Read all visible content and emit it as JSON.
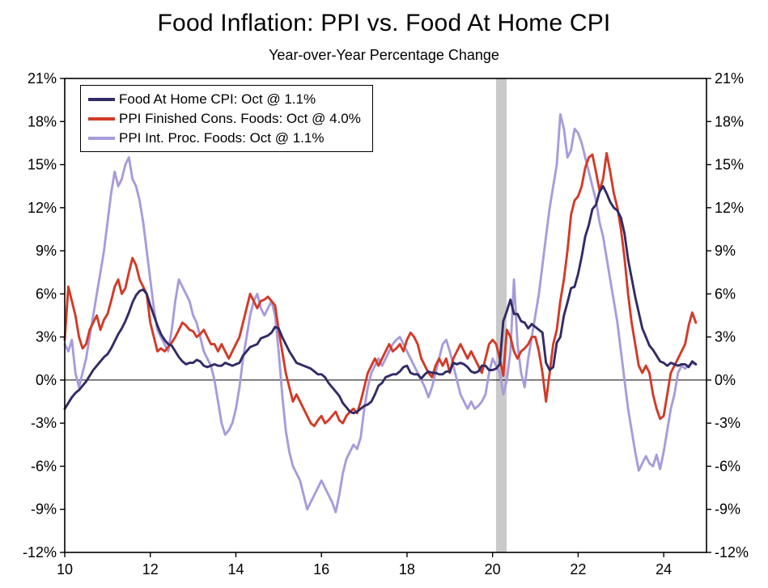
{
  "chart_data": {
    "type": "line",
    "title": "Food Inflation: PPI vs. Food At Home CPI",
    "subtitle": "Year-over-Year Percentage Change",
    "xlim": [
      10,
      25
    ],
    "ylim": [
      -12,
      21
    ],
    "xticks": [
      10,
      12,
      14,
      16,
      18,
      20,
      22,
      24
    ],
    "yticks": [
      21,
      18,
      15,
      12,
      9,
      6,
      3,
      0,
      -3,
      -6,
      -9,
      -12
    ],
    "ytick_suffix": "%",
    "grid": false,
    "zero_line": true,
    "legend_position": "top-left",
    "recession_band": {
      "x_from": 20.08,
      "x_to": 20.33,
      "color": "#c9c9c9"
    },
    "x_numeric_start": 10.0,
    "x_step": 0.0833333,
    "series": [
      {
        "name": "Food At Home CPI",
        "label": "Food At Home CPI: Oct @ 1.1%",
        "color": "#312b66",
        "values": [
          -2.0,
          -1.6,
          -1.2,
          -0.9,
          -0.7,
          -0.4,
          -0.1,
          0.3,
          0.7,
          1.0,
          1.3,
          1.6,
          1.8,
          2.2,
          2.7,
          3.2,
          3.6,
          4.1,
          4.7,
          5.4,
          5.9,
          6.2,
          6.3,
          6.0,
          5.2,
          4.5,
          3.8,
          3.2,
          2.8,
          2.5,
          2.4,
          2.0,
          1.6,
          1.3,
          1.1,
          1.2,
          1.2,
          1.4,
          1.3,
          1.0,
          0.9,
          1.0,
          1.1,
          1.0,
          1.0,
          1.2,
          1.1,
          1.0,
          1.1,
          1.2,
          1.7,
          2.0,
          2.3,
          2.4,
          2.5,
          2.9,
          3.0,
          3.1,
          3.3,
          3.7,
          3.6,
          3.0,
          2.5,
          2.0,
          1.6,
          1.2,
          1.1,
          1.0,
          0.9,
          0.8,
          0.6,
          0.4,
          0.4,
          0.2,
          -0.2,
          -0.5,
          -0.8,
          -1.1,
          -1.6,
          -1.9,
          -2.2,
          -2.3,
          -2.2,
          -2.0,
          -1.8,
          -1.7,
          -1.5,
          -1.0,
          -0.4,
          -0.2,
          0.2,
          0.3,
          0.4,
          0.4,
          0.6,
          0.9,
          1.0,
          0.5,
          0.4,
          0.4,
          0.1,
          0.4,
          0.6,
          0.5,
          0.5,
          0.4,
          0.4,
          0.6,
          0.6,
          1.2,
          1.1,
          1.2,
          1.1,
          0.9,
          0.6,
          0.5,
          0.6,
          1.0,
          1.0,
          0.7,
          0.7,
          0.8,
          1.1,
          4.1,
          4.8,
          5.6,
          4.6,
          4.6,
          4.1,
          4.0,
          3.6,
          3.9,
          3.7,
          3.5,
          3.3,
          1.2,
          0.7,
          0.9,
          2.6,
          3.0,
          4.5,
          5.4,
          6.4,
          6.5,
          7.4,
          8.6,
          10.0,
          10.8,
          11.9,
          12.2,
          13.1,
          13.5,
          13.0,
          12.4,
          12.0,
          11.8,
          11.3,
          10.2,
          8.4,
          7.1,
          5.8,
          4.7,
          3.6,
          3.0,
          2.4,
          2.1,
          1.7,
          1.3,
          1.2,
          1.0,
          1.2,
          1.1,
          1.0,
          1.1,
          1.1,
          0.9,
          1.3,
          1.1
        ]
      },
      {
        "name": "PPI Finished Cons. Foods",
        "label": "PPI Finished Cons. Foods: Oct @ 4.0%",
        "color": "#d23a27",
        "values": [
          2.8,
          6.5,
          5.5,
          4.5,
          3.0,
          2.2,
          2.5,
          3.5,
          4.0,
          4.5,
          3.5,
          4.2,
          4.6,
          5.5,
          6.5,
          7.0,
          6.0,
          6.4,
          7.5,
          8.5,
          8.0,
          7.0,
          6.5,
          6.0,
          4.0,
          3.0,
          2.0,
          2.2,
          2.0,
          2.3,
          2.6,
          3.0,
          3.5,
          4.0,
          3.8,
          3.5,
          3.4,
          3.0,
          3.2,
          3.5,
          3.0,
          2.5,
          2.5,
          2.0,
          2.5,
          2.0,
          1.5,
          2.0,
          2.5,
          3.0,
          4.0,
          5.0,
          6.0,
          5.5,
          5.0,
          5.5,
          5.6,
          5.8,
          5.5,
          5.2,
          3.5,
          2.0,
          0.5,
          -0.5,
          -1.5,
          -1.0,
          -1.5,
          -2.0,
          -2.5,
          -3.0,
          -3.2,
          -2.8,
          -2.5,
          -3.0,
          -2.8,
          -2.5,
          -2.2,
          -2.8,
          -3.0,
          -2.5,
          -2.2,
          -2.0,
          -2.3,
          -1.5,
          -0.5,
          0.5,
          1.0,
          1.5,
          1.0,
          1.5,
          2.0,
          2.5,
          2.0,
          2.2,
          2.5,
          2.0,
          2.8,
          3.3,
          3.0,
          2.5,
          1.5,
          1.0,
          0.5,
          0.2,
          1.0,
          1.5,
          1.0,
          1.5,
          0.5,
          1.5,
          2.0,
          2.5,
          2.0,
          1.5,
          2.0,
          1.5,
          1.0,
          0.5,
          1.5,
          2.5,
          2.8,
          2.5,
          1.5,
          0.3,
          3.5,
          3.0,
          2.0,
          1.5,
          2.0,
          2.2,
          2.5,
          3.0,
          3.0,
          2.0,
          0.5,
          -1.5,
          0.5,
          2.5,
          3.5,
          5.5,
          7.0,
          9.0,
          11.5,
          12.5,
          12.8,
          13.5,
          14.8,
          15.5,
          15.7,
          14.5,
          13.2,
          14.0,
          15.8,
          14.5,
          13.0,
          12.0,
          10.5,
          8.5,
          6.0,
          4.0,
          2.5,
          1.0,
          0.5,
          1.0,
          0.5,
          -1.0,
          -2.0,
          -2.7,
          -2.5,
          -1.0,
          0.5,
          1.0,
          1.5,
          2.0,
          2.5,
          3.8,
          4.7,
          4.0
        ]
      },
      {
        "name": "PPI Int. Proc. Foods",
        "label": "PPI Int. Proc. Foods: Oct @ 1.1%",
        "color": "#a89bdb",
        "values": [
          2.5,
          2.0,
          2.8,
          0.5,
          -0.5,
          0.5,
          1.5,
          3.0,
          4.5,
          6.0,
          7.5,
          9.0,
          11.0,
          13.0,
          14.5,
          13.5,
          14.0,
          15.0,
          15.5,
          14.0,
          13.5,
          12.5,
          11.0,
          9.0,
          7.0,
          5.0,
          3.5,
          3.0,
          2.5,
          2.0,
          3.5,
          5.5,
          7.0,
          6.5,
          6.0,
          5.5,
          4.5,
          4.0,
          3.0,
          2.0,
          1.5,
          1.0,
          0.0,
          -1.5,
          -3.0,
          -3.8,
          -3.5,
          -3.0,
          -2.0,
          -0.5,
          1.5,
          3.0,
          4.5,
          5.5,
          6.0,
          5.0,
          4.5,
          5.0,
          5.5,
          4.5,
          2.0,
          -1.0,
          -3.5,
          -5.0,
          -6.0,
          -6.5,
          -7.0,
          -8.0,
          -9.0,
          -8.5,
          -8.0,
          -7.5,
          -7.0,
          -7.5,
          -8.0,
          -8.5,
          -9.2,
          -8.0,
          -6.5,
          -5.5,
          -5.0,
          -4.5,
          -4.8,
          -4.0,
          -2.0,
          -0.5,
          0.5,
          1.0,
          1.5,
          1.0,
          1.5,
          2.0,
          2.5,
          2.8,
          3.0,
          2.5,
          2.0,
          1.5,
          1.0,
          0.5,
          0.0,
          -0.5,
          -1.2,
          -0.5,
          0.5,
          1.5,
          2.5,
          2.8,
          2.0,
          1.0,
          0.0,
          -1.0,
          -1.5,
          -2.0,
          -1.5,
          -2.0,
          -1.8,
          -1.5,
          -1.0,
          0.5,
          1.5,
          1.0,
          0.5,
          -1.0,
          0.0,
          2.0,
          7.0,
          2.5,
          0.5,
          -0.5,
          1.5,
          3.0,
          4.5,
          6.0,
          8.0,
          10.0,
          12.0,
          13.5,
          15.0,
          18.5,
          17.5,
          15.5,
          16.0,
          17.5,
          17.2,
          16.5,
          15.5,
          14.5,
          13.5,
          12.5,
          11.0,
          10.0,
          8.5,
          7.0,
          5.5,
          4.0,
          2.0,
          0.0,
          -2.0,
          -3.5,
          -5.0,
          -6.3,
          -5.8,
          -5.3,
          -5.8,
          -6.0,
          -5.2,
          -6.2,
          -5.0,
          -3.5,
          -2.0,
          -1.0,
          0.5,
          1.0,
          0.8,
          1.0,
          1.2,
          1.1
        ]
      }
    ]
  }
}
